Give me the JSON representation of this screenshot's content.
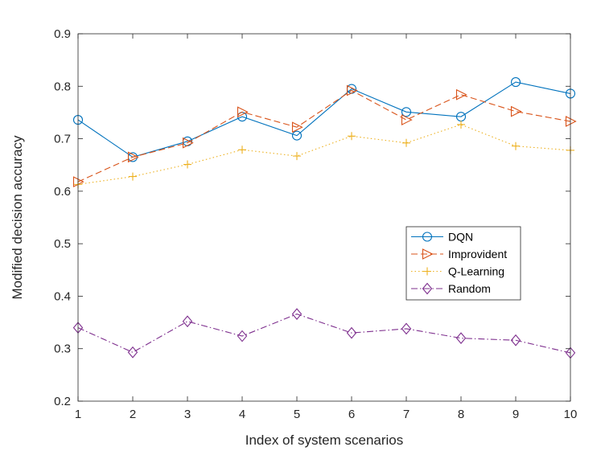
{
  "chart_data": {
    "type": "line",
    "title": "",
    "xlabel": "Index of system scenarios",
    "ylabel": "Modified decision accuracy",
    "x": [
      1,
      2,
      3,
      4,
      5,
      6,
      7,
      8,
      9,
      10
    ],
    "xlim": [
      1,
      10
    ],
    "ylim": [
      0.2,
      0.9
    ],
    "xticks": [
      1,
      2,
      3,
      4,
      5,
      6,
      7,
      8,
      9,
      10
    ],
    "yticks": [
      0.2,
      0.3,
      0.4,
      0.5,
      0.6,
      0.7,
      0.8,
      0.9
    ],
    "ytick_labels": [
      "0.2",
      "0.3",
      "0.4",
      "0.5",
      "0.6",
      "0.7",
      "0.8",
      "0.9"
    ],
    "grid": false,
    "legend_position": "right",
    "series": [
      {
        "name": "DQN",
        "color": "#0072BD",
        "dash": "solid",
        "marker": "circle",
        "values": [
          0.736,
          0.665,
          0.695,
          0.742,
          0.706,
          0.795,
          0.751,
          0.742,
          0.808,
          0.786
        ]
      },
      {
        "name": "Improvident",
        "color": "#D95319",
        "dash": "dashed",
        "marker": "triangle-right",
        "values": [
          0.618,
          0.665,
          0.692,
          0.751,
          0.722,
          0.792,
          0.736,
          0.784,
          0.752,
          0.733
        ]
      },
      {
        "name": "Q-Learning",
        "color": "#EDB120",
        "dash": "dotted",
        "marker": "plus",
        "values": [
          0.613,
          0.628,
          0.651,
          0.679,
          0.667,
          0.705,
          0.692,
          0.727,
          0.686,
          0.678
        ]
      },
      {
        "name": "Random",
        "color": "#7E2F8E",
        "dash": "dashdot",
        "marker": "diamond",
        "values": [
          0.34,
          0.293,
          0.352,
          0.324,
          0.366,
          0.33,
          0.338,
          0.32,
          0.316,
          0.292
        ]
      }
    ]
  }
}
